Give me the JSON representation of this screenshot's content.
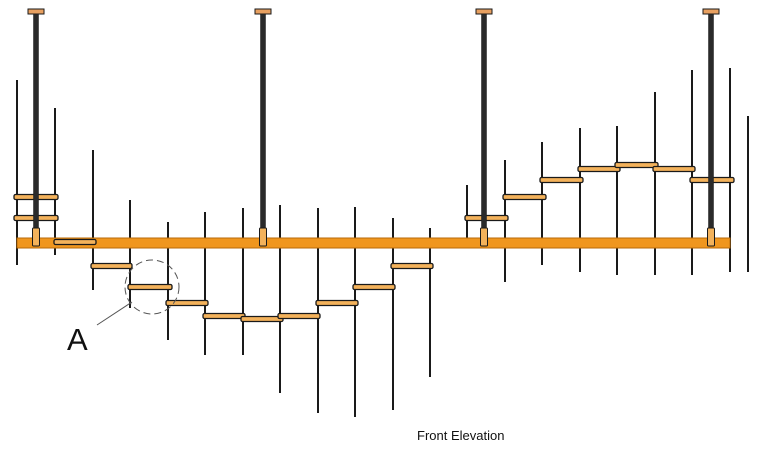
{
  "labels": {
    "detail": "A",
    "caption": "Front Elevation"
  },
  "colors": {
    "line": "#1a1a1a",
    "rail": "#f0961e",
    "rail_dark": "#b86a08",
    "bar": "#f3b25b",
    "cap": "#e8a060",
    "background": "#ffffff"
  }
}
